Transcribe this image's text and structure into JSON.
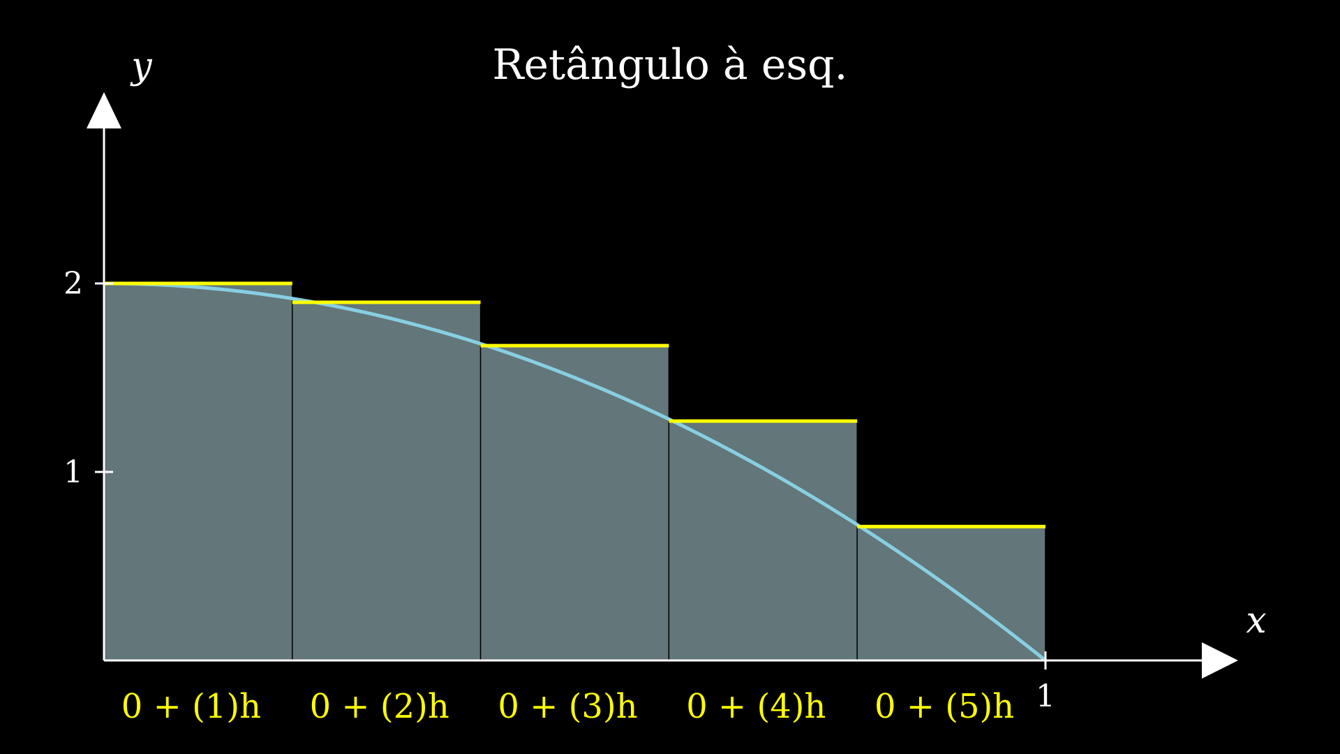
{
  "chart_data": {
    "type": "bar",
    "title": "Retângulo à esq.",
    "xlabel": "x",
    "ylabel": "y",
    "xlim": [
      0,
      1.2
    ],
    "ylim": [
      0,
      2.9
    ],
    "x_ticks": [
      {
        "value": 1,
        "label": "1"
      }
    ],
    "y_ticks": [
      {
        "value": 1,
        "label": "1"
      },
      {
        "value": 2,
        "label": "2"
      }
    ],
    "grid": false,
    "curve": {
      "name": "",
      "expression": "2 - 2x^2",
      "color": "#87cfe3",
      "domain": [
        0,
        1
      ]
    },
    "bars": [
      {
        "x_start": 0.0,
        "x_end": 0.2,
        "height": 2.0,
        "label": "0 + (1)h"
      },
      {
        "x_start": 0.2,
        "x_end": 0.4,
        "height": 1.9,
        "label": "0 + (2)h"
      },
      {
        "x_start": 0.4,
        "x_end": 0.6,
        "height": 1.67,
        "label": "0 + (3)h"
      },
      {
        "x_start": 0.6,
        "x_end": 0.8,
        "height": 1.27,
        "label": "0 + (4)h"
      },
      {
        "x_start": 0.8,
        "x_end": 1.0,
        "height": 0.71,
        "label": "0 + (5)h"
      }
    ],
    "colors": {
      "background": "#000000",
      "bar_fill": "#637679",
      "bar_top": "#ffff00",
      "bar_divider": "#000000",
      "axis": "#ffffff",
      "label": "#ffff00",
      "curve": "#87cfe3"
    }
  }
}
